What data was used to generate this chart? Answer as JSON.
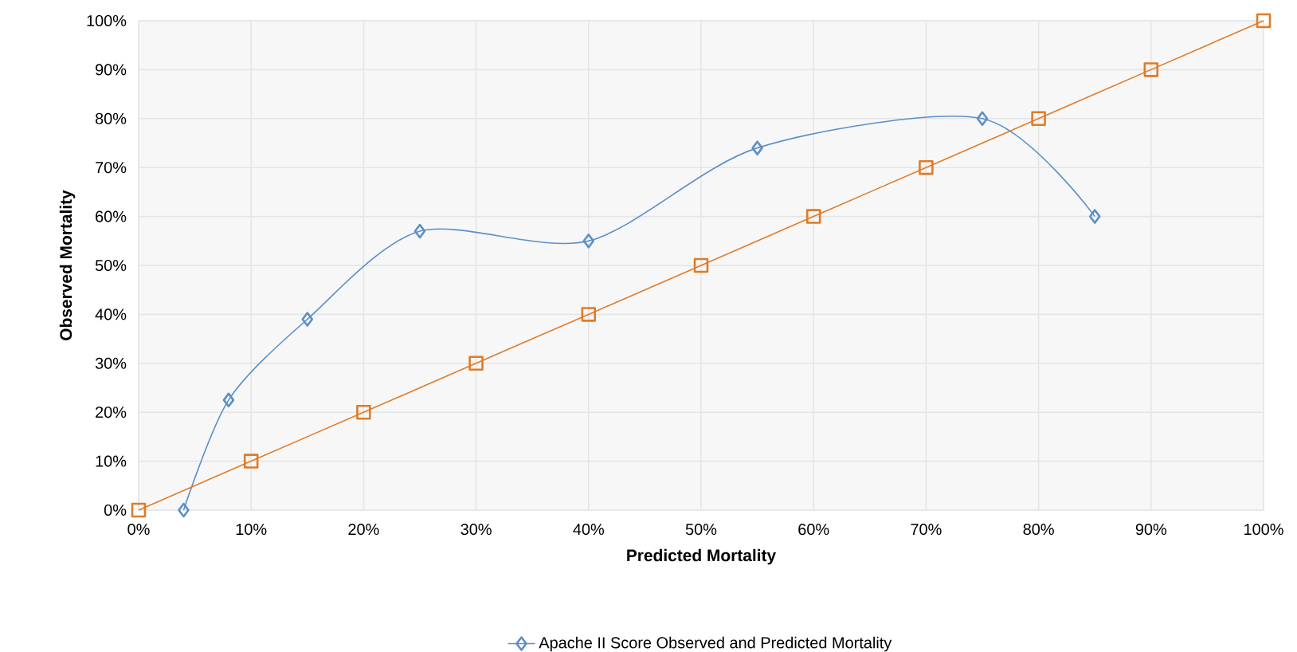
{
  "chart_data": {
    "type": "line",
    "xlabel": "Predicted Mortality",
    "ylabel": "Observed Mortality",
    "series": [
      {
        "name": "Apache II Score Observed and Predicted Mortality",
        "color": "#5b8fc7",
        "marker": "diamond",
        "x": [
          4,
          8,
          15,
          25,
          40,
          55,
          75,
          85
        ],
        "values": [
          0,
          22.5,
          39,
          57,
          55,
          74,
          80,
          60
        ]
      },
      {
        "color": "#e07b28",
        "marker": "square",
        "x": [
          0,
          10,
          20,
          30,
          40,
          50,
          60,
          70,
          80,
          90,
          100
        ],
        "values": [
          0,
          10,
          20,
          30,
          40,
          50,
          60,
          70,
          80,
          90,
          100
        ]
      }
    ],
    "xlim": [
      0,
      100
    ],
    "ylim": [
      0,
      100
    ],
    "xticks": [
      {
        "value": 0,
        "label": "0%"
      },
      {
        "value": 10,
        "label": "10%"
      },
      {
        "value": 20,
        "label": "20%"
      },
      {
        "value": 30,
        "label": "30%"
      },
      {
        "value": 40,
        "label": "40%"
      },
      {
        "value": 50,
        "label": "50%"
      },
      {
        "value": 60,
        "label": "60%"
      },
      {
        "value": 70,
        "label": "70%"
      },
      {
        "value": 80,
        "label": "80%"
      },
      {
        "value": 90,
        "label": "90%"
      },
      {
        "value": 100,
        "label": "100%"
      }
    ],
    "yticks": [
      {
        "value": 0,
        "label": "0%"
      },
      {
        "value": 10,
        "label": "10%"
      },
      {
        "value": 20,
        "label": "20%"
      },
      {
        "value": 30,
        "label": "30%"
      },
      {
        "value": 40,
        "label": "40%"
      },
      {
        "value": 50,
        "label": "50%"
      },
      {
        "value": 60,
        "label": "60%"
      },
      {
        "value": 70,
        "label": "70%"
      },
      {
        "value": 80,
        "label": "80%"
      },
      {
        "value": 90,
        "label": "90%"
      },
      {
        "value": 100,
        "label": "100%"
      }
    ],
    "grid": true,
    "legend": "bottom"
  }
}
